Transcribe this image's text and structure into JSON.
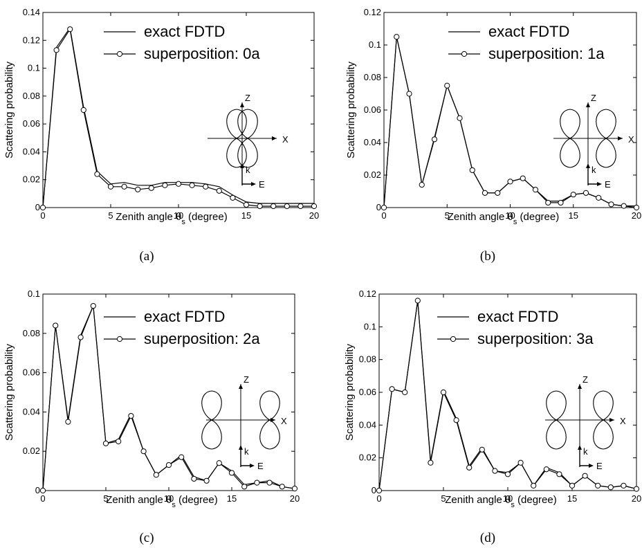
{
  "figure": {
    "xlabel_main": "Zenith angle θ",
    "xlabel_sub": "s",
    "xlabel_unit": "(degree)",
    "ylabel": "Scattering probability",
    "inset_labels": {
      "z": "Z",
      "x": "X",
      "k": "k",
      "e": "E"
    }
  },
  "chart_data": [
    {
      "type": "line",
      "caption": "(a)",
      "xlim": [
        0,
        20
      ],
      "ylim": [
        0,
        0.14
      ],
      "xticks": [
        "0",
        "5",
        "10",
        "15",
        "20"
      ],
      "yticks": [
        "0",
        "0.02",
        "0.04",
        "0.06",
        "0.08",
        "0.1",
        "0.12",
        "0.14"
      ],
      "series": [
        {
          "name": "exact FDTD",
          "marker": "none",
          "x": [
            0,
            1,
            2,
            3,
            4,
            5,
            6,
            7,
            8,
            9,
            10,
            11,
            12,
            13,
            14,
            15,
            16,
            17,
            18,
            19,
            20
          ],
          "values": [
            0,
            0.115,
            0.129,
            0.072,
            0.026,
            0.017,
            0.018,
            0.016,
            0.016,
            0.018,
            0.018,
            0.018,
            0.017,
            0.015,
            0.009,
            0.004,
            0.003,
            0.003,
            0.003,
            0.003,
            0.003
          ]
        },
        {
          "name": "superposition: 0a",
          "marker": "circle",
          "x": [
            0,
            1,
            2,
            3,
            4,
            5,
            6,
            7,
            8,
            9,
            10,
            11,
            12,
            13,
            14,
            15,
            16,
            17,
            18,
            19,
            20
          ],
          "values": [
            0,
            0.113,
            0.128,
            0.07,
            0.024,
            0.015,
            0.015,
            0.013,
            0.014,
            0.016,
            0.017,
            0.016,
            0.015,
            0.012,
            0.007,
            0.002,
            0.001,
            0.001,
            0.001,
            0.001,
            0.001
          ]
        }
      ],
      "legend": "top-right"
    },
    {
      "type": "line",
      "caption": "(b)",
      "xlim": [
        0,
        20
      ],
      "ylim": [
        0,
        0.12
      ],
      "xticks": [
        "0",
        "5",
        "10",
        "15",
        "20"
      ],
      "yticks": [
        "0",
        "0.02",
        "0.04",
        "0.06",
        "0.08",
        "0.1",
        "0.12"
      ],
      "series": [
        {
          "name": "exact FDTD",
          "marker": "none",
          "x": [
            0,
            1,
            2,
            3,
            4,
            5,
            6,
            7,
            8,
            9,
            10,
            11,
            12,
            13,
            14,
            15,
            16,
            17,
            18,
            19,
            20
          ],
          "values": [
            0,
            0.105,
            0.07,
            0.014,
            0.043,
            0.075,
            0.055,
            0.023,
            0.009,
            0.009,
            0.016,
            0.018,
            0.011,
            0.004,
            0.004,
            0.008,
            0.009,
            0.006,
            0.002,
            0.001,
            0.001
          ]
        },
        {
          "name": "superposition: 1a",
          "marker": "circle",
          "x": [
            0,
            1,
            2,
            3,
            4,
            5,
            6,
            7,
            8,
            9,
            10,
            11,
            12,
            13,
            14,
            15,
            16,
            17,
            18,
            19,
            20
          ],
          "values": [
            0,
            0.105,
            0.07,
            0.014,
            0.042,
            0.075,
            0.055,
            0.023,
            0.009,
            0.009,
            0.016,
            0.018,
            0.011,
            0.003,
            0.003,
            0.008,
            0.009,
            0.006,
            0.002,
            0.001,
            0.0
          ]
        }
      ],
      "legend": "top-right"
    },
    {
      "type": "line",
      "caption": "(c)",
      "xlim": [
        0,
        20
      ],
      "ylim": [
        0,
        0.1
      ],
      "xticks": [
        "0",
        "5",
        "10",
        "15",
        "20"
      ],
      "yticks": [
        "0",
        "0.02",
        "0.04",
        "0.06",
        "0.08",
        "0.1"
      ],
      "series": [
        {
          "name": "exact FDTD",
          "marker": "none",
          "x": [
            0,
            1,
            2,
            3,
            4,
            5,
            6,
            7,
            8,
            9,
            10,
            11,
            12,
            13,
            14,
            15,
            16,
            17,
            18,
            19,
            20
          ],
          "values": [
            0,
            0.084,
            0.036,
            0.079,
            0.094,
            0.024,
            0.026,
            0.039,
            0.02,
            0.008,
            0.013,
            0.018,
            0.007,
            0.005,
            0.014,
            0.01,
            0.003,
            0.004,
            0.005,
            0.002,
            0.001
          ]
        },
        {
          "name": "superposition: 2a",
          "marker": "circle",
          "x": [
            0,
            1,
            2,
            3,
            4,
            5,
            6,
            7,
            8,
            9,
            10,
            11,
            12,
            13,
            14,
            15,
            16,
            17,
            18,
            19,
            20
          ],
          "values": [
            0,
            0.084,
            0.035,
            0.078,
            0.094,
            0.024,
            0.025,
            0.038,
            0.02,
            0.008,
            0.013,
            0.017,
            0.006,
            0.005,
            0.014,
            0.009,
            0.002,
            0.004,
            0.004,
            0.002,
            0.001
          ]
        }
      ],
      "legend": "top-right"
    },
    {
      "type": "line",
      "caption": "(d)",
      "xlim": [
        0,
        20
      ],
      "ylim": [
        0,
        0.12
      ],
      "xticks": [
        "0",
        "5",
        "10",
        "15",
        "20"
      ],
      "yticks": [
        "0",
        "0.02",
        "0.04",
        "0.06",
        "0.08",
        "0.1",
        "0.12"
      ],
      "series": [
        {
          "name": "exact FDTD",
          "marker": "none",
          "x": [
            0,
            1,
            2,
            3,
            4,
            5,
            6,
            7,
            8,
            9,
            10,
            11,
            12,
            13,
            14,
            15,
            16,
            17,
            18,
            19,
            20
          ],
          "values": [
            0,
            0.062,
            0.06,
            0.116,
            0.018,
            0.061,
            0.044,
            0.015,
            0.026,
            0.012,
            0.011,
            0.017,
            0.003,
            0.014,
            0.011,
            0.003,
            0.009,
            0.003,
            0.002,
            0.003,
            0.001
          ]
        },
        {
          "name": "superposition: 3a",
          "marker": "circle",
          "x": [
            0,
            1,
            2,
            3,
            4,
            5,
            6,
            7,
            8,
            9,
            10,
            11,
            12,
            13,
            14,
            15,
            16,
            17,
            18,
            19,
            20
          ],
          "values": [
            0,
            0.062,
            0.06,
            0.116,
            0.017,
            0.06,
            0.043,
            0.014,
            0.025,
            0.012,
            0.01,
            0.017,
            0.003,
            0.013,
            0.01,
            0.003,
            0.009,
            0.003,
            0.002,
            0.003,
            0.001
          ]
        }
      ],
      "legend": "top-right"
    }
  ]
}
